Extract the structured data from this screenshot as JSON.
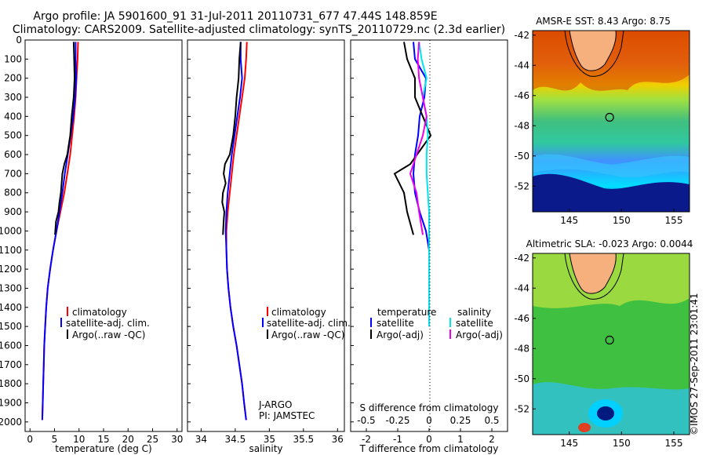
{
  "header": {
    "line1": "Argo profile: JA 5901600_91 31-Jul-2011 20110731_677 47.44S 148.859E",
    "line2": "Climatology: CARS2009. Satellite-adjusted climatology: synTS_20110729.nc (2.3d earlier)"
  },
  "colors": {
    "climatology": "#ff0000",
    "satellite": "#0000ff",
    "argo": "#000000",
    "sal_satellite": "#00e5ee",
    "sal_argo": "#ee00ee"
  },
  "chart_data": [
    {
      "type": "line",
      "panel": "temperature",
      "xlabel": "temperature (deg C)",
      "xlim": [
        -1,
        31
      ],
      "ylim": [
        2050,
        0
      ],
      "xticks": [
        0,
        5,
        10,
        15,
        20,
        25,
        30
      ],
      "yticks": [
        0,
        100,
        200,
        300,
        400,
        500,
        600,
        700,
        800,
        900,
        1000,
        1100,
        1200,
        1300,
        1400,
        1500,
        1600,
        1700,
        1800,
        1900,
        2000
      ],
      "legend": [
        "climatology",
        "satellite-adj. clim.",
        "Argo(..raw -QC)"
      ],
      "series": [
        {
          "name": "climatology",
          "color": "climatology",
          "points": [
            [
              9.8,
              10
            ],
            [
              9.7,
              100
            ],
            [
              9.5,
              200
            ],
            [
              9.3,
              300
            ],
            [
              9.0,
              400
            ],
            [
              8.6,
              500
            ],
            [
              8.2,
              600
            ],
            [
              7.6,
              700
            ],
            [
              7.0,
              800
            ],
            [
              6.2,
              900
            ],
            [
              5.4,
              1000
            ],
            [
              4.7,
              1100
            ],
            [
              4.1,
              1200
            ],
            [
              3.6,
              1300
            ],
            [
              3.3,
              1400
            ],
            [
              3.1,
              1500
            ],
            [
              2.9,
              1600
            ],
            [
              2.8,
              1700
            ],
            [
              2.7,
              1800
            ],
            [
              2.6,
              1900
            ],
            [
              2.5,
              1990
            ]
          ]
        },
        {
          "name": "satellite-adj. clim.",
          "color": "satellite",
          "points": [
            [
              9.3,
              10
            ],
            [
              9.3,
              100
            ],
            [
              9.4,
              200
            ],
            [
              9.2,
              300
            ],
            [
              8.8,
              400
            ],
            [
              8.3,
              500
            ],
            [
              7.7,
              600
            ],
            [
              7.1,
              700
            ],
            [
              6.6,
              800
            ],
            [
              6.0,
              900
            ],
            [
              5.4,
              1000
            ],
            [
              4.7,
              1100
            ],
            [
              4.1,
              1200
            ],
            [
              3.6,
              1300
            ],
            [
              3.3,
              1400
            ],
            [
              3.1,
              1500
            ],
            [
              2.9,
              1600
            ],
            [
              2.8,
              1700
            ],
            [
              2.7,
              1800
            ],
            [
              2.6,
              1900
            ],
            [
              2.5,
              1990
            ]
          ]
        },
        {
          "name": "Argo(..raw -QC)",
          "color": "argo",
          "points": [
            [
              8.9,
              10
            ],
            [
              9.0,
              100
            ],
            [
              9.1,
              200
            ],
            [
              8.9,
              300
            ],
            [
              8.5,
              400
            ],
            [
              8.2,
              500
            ],
            [
              7.6,
              600
            ],
            [
              7.0,
              650
            ],
            [
              6.6,
              700
            ],
            [
              6.3,
              800
            ],
            [
              6.0,
              850
            ],
            [
              5.8,
              900
            ],
            [
              5.3,
              950
            ],
            [
              5.1,
              1020
            ]
          ]
        }
      ]
    },
    {
      "type": "line",
      "panel": "salinity",
      "xlabel": "salinity",
      "xlim": [
        33.8,
        36.1
      ],
      "ylim": [
        2050,
        0
      ],
      "xticks": [
        34,
        34.5,
        35,
        35.5,
        36
      ],
      "legend": [
        "climatology",
        "satellite-adj. clim.",
        "Argo(..raw -QC)"
      ],
      "annotations": [
        "J-ARGO",
        "PI: JAMSTEC"
      ],
      "series": [
        {
          "name": "climatology",
          "color": "climatology",
          "points": [
            [
              34.67,
              10
            ],
            [
              34.66,
              100
            ],
            [
              34.64,
              200
            ],
            [
              34.6,
              300
            ],
            [
              34.56,
              400
            ],
            [
              34.52,
              500
            ],
            [
              34.48,
              600
            ],
            [
              34.45,
              700
            ],
            [
              34.42,
              800
            ],
            [
              34.39,
              900
            ],
            [
              34.37,
              1000
            ],
            [
              34.37,
              1100
            ],
            [
              34.38,
              1200
            ],
            [
              34.4,
              1300
            ],
            [
              34.43,
              1400
            ],
            [
              34.47,
              1500
            ],
            [
              34.52,
              1600
            ],
            [
              34.56,
              1700
            ],
            [
              34.6,
              1800
            ],
            [
              34.63,
              1900
            ],
            [
              34.66,
              1990
            ]
          ]
        },
        {
          "name": "satellite-adj. clim.",
          "color": "satellite",
          "points": [
            [
              34.58,
              10
            ],
            [
              34.58,
              100
            ],
            [
              34.6,
              200
            ],
            [
              34.57,
              300
            ],
            [
              34.53,
              400
            ],
            [
              34.49,
              500
            ],
            [
              34.45,
              600
            ],
            [
              34.42,
              700
            ],
            [
              34.39,
              800
            ],
            [
              34.37,
              900
            ],
            [
              34.36,
              1000
            ],
            [
              34.37,
              1100
            ],
            [
              34.38,
              1200
            ],
            [
              34.4,
              1300
            ],
            [
              34.43,
              1400
            ],
            [
              34.47,
              1500
            ],
            [
              34.52,
              1600
            ],
            [
              34.56,
              1700
            ],
            [
              34.6,
              1800
            ],
            [
              34.63,
              1900
            ],
            [
              34.66,
              1990
            ]
          ]
        },
        {
          "name": "Argo(..raw -QC)",
          "color": "argo",
          "points": [
            [
              34.58,
              10
            ],
            [
              34.56,
              100
            ],
            [
              34.55,
              200
            ],
            [
              34.52,
              300
            ],
            [
              34.5,
              400
            ],
            [
              34.47,
              500
            ],
            [
              34.42,
              600
            ],
            [
              34.35,
              650
            ],
            [
              34.33,
              700
            ],
            [
              34.36,
              750
            ],
            [
              34.32,
              800
            ],
            [
              34.31,
              850
            ],
            [
              34.34,
              900
            ],
            [
              34.33,
              950
            ],
            [
              34.32,
              1020
            ]
          ]
        }
      ]
    },
    {
      "type": "line",
      "panel": "difference",
      "xlabel_top": "S difference from climatology",
      "xlabel": "T difference from climatology",
      "xlim": [
        -2.5,
        2.5
      ],
      "ylim": [
        2050,
        0
      ],
      "xticks_T": [
        -2,
        -1,
        0,
        1,
        2
      ],
      "xticks_S": [
        -0.5,
        -0.25,
        0,
        0.25,
        0.5
      ],
      "legend_headings": [
        "temperature",
        "salinity"
      ],
      "legend": [
        "satellite",
        "Argo(-adj)",
        "satellite",
        "Argo(-adj)"
      ],
      "series": [
        {
          "name": "satellite",
          "group": "temperature",
          "color": "satellite",
          "points": [
            [
              -0.5,
              10
            ],
            [
              -0.45,
              100
            ],
            [
              -0.1,
              200
            ],
            [
              -0.15,
              300
            ],
            [
              -0.3,
              400
            ],
            [
              -0.35,
              500
            ],
            [
              -0.45,
              600
            ],
            [
              -0.5,
              700
            ],
            [
              -0.45,
              800
            ],
            [
              -0.3,
              900
            ],
            [
              -0.1,
              1000
            ],
            [
              0,
              1100
            ],
            [
              0,
              1500
            ]
          ]
        },
        {
          "name": "Argo(-adj)",
          "group": "temperature",
          "color": "argo",
          "points": [
            [
              -0.8,
              10
            ],
            [
              -0.7,
              100
            ],
            [
              -0.45,
              200
            ],
            [
              -0.45,
              300
            ],
            [
              -0.2,
              400
            ],
            [
              0.05,
              500
            ],
            [
              -0.6,
              650
            ],
            [
              -1.1,
              700
            ],
            [
              -0.8,
              800
            ],
            [
              -0.7,
              900
            ],
            [
              -0.5,
              1020
            ]
          ]
        },
        {
          "name": "satellite",
          "group": "salinity",
          "color": "sal_satellite",
          "points": [
            [
              -0.08,
              10
            ],
            [
              -0.06,
              100
            ],
            [
              -0.02,
              200
            ],
            [
              -0.05,
              300
            ],
            [
              -0.02,
              400
            ],
            [
              -0.01,
              500
            ],
            [
              -0.02,
              600
            ],
            [
              -0.02,
              700
            ],
            [
              -0.01,
              800
            ],
            [
              0,
              900
            ],
            [
              0,
              1100
            ],
            [
              0,
              1500
            ]
          ]
        },
        {
          "name": "Argo(-adj)",
          "group": "salinity",
          "color": "sal_argo",
          "points": [
            [
              -0.08,
              10
            ],
            [
              -0.09,
              100
            ],
            [
              -0.08,
              200
            ],
            [
              -0.05,
              300
            ],
            [
              -0.02,
              400
            ],
            [
              -0.05,
              500
            ],
            [
              -0.1,
              600
            ],
            [
              -0.15,
              700
            ],
            [
              -0.1,
              800
            ],
            [
              -0.08,
              900
            ],
            [
              -0.05,
              1020
            ]
          ]
        }
      ]
    },
    {
      "type": "heatmap",
      "panel": "sst_map",
      "title": "AMSR-E SST: 8.43 Argo: 8.75",
      "xlim": [
        141.5,
        156.5
      ],
      "ylim": [
        -53.7,
        -41.7
      ],
      "xticks": [
        145,
        150,
        155
      ],
      "yticks": [
        -42,
        -44,
        -46,
        -48,
        -50,
        -52
      ],
      "marker": {
        "lon": 148.859,
        "lat": -47.44
      }
    },
    {
      "type": "heatmap",
      "panel": "sla_map",
      "title": "Altimetric SLA: -0.023 Argo: 0.0044",
      "xlim": [
        141.5,
        156.5
      ],
      "ylim": [
        -53.7,
        -41.7
      ],
      "xticks": [
        145,
        150,
        155
      ],
      "yticks": [
        -42,
        -44,
        -46,
        -48,
        -50,
        -52
      ],
      "marker": {
        "lon": 148.859,
        "lat": -47.44
      }
    }
  ],
  "footer": {
    "stamp": "©IMOS 27-Sep-2011 23:01:41"
  }
}
